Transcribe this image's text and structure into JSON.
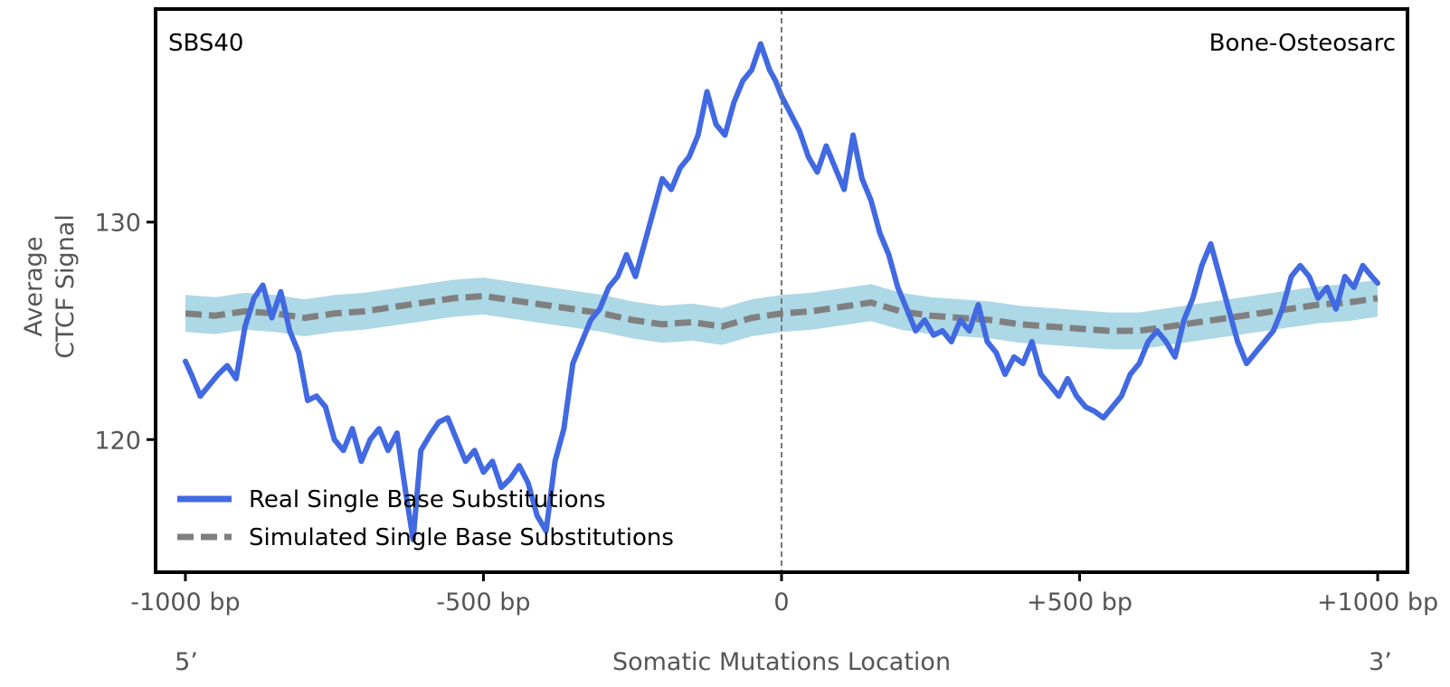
{
  "chart_data": {
    "type": "line",
    "panel_label": "SBS40",
    "cancer_type": "Bone-Osteosarc",
    "ylabel_line1": "Average",
    "ylabel_line2": "CTCF Signal",
    "xlabel": "Somatic Mutations Location",
    "five_prime": "5’",
    "three_prime": "3’",
    "xlim": [
      -1050,
      1050
    ],
    "ylim": [
      113.9,
      139.8
    ],
    "x_ticks": [
      {
        "value": -1000,
        "label": "-1000 bp"
      },
      {
        "value": -500,
        "label": "-500 bp"
      },
      {
        "value": 0,
        "label": "0"
      },
      {
        "value": 500,
        "label": "+500 bp"
      },
      {
        "value": 1000,
        "label": "+1000 bp"
      }
    ],
    "y_ticks": [
      {
        "value": 120,
        "label": "120"
      },
      {
        "value": 130,
        "label": "130"
      }
    ],
    "reference_line_x": 0,
    "legend_position": "lower-left",
    "series": [
      {
        "name": "Real Single Base Substitutions",
        "style": "solid",
        "color": "#4169e1",
        "x": [
          -1000,
          -990,
          -975,
          -960,
          -945,
          -930,
          -915,
          -900,
          -885,
          -870,
          -855,
          -840,
          -825,
          -810,
          -795,
          -780,
          -765,
          -750,
          -735,
          -720,
          -705,
          -690,
          -675,
          -660,
          -645,
          -630,
          -618,
          -605,
          -590,
          -575,
          -560,
          -545,
          -530,
          -515,
          -500,
          -485,
          -470,
          -455,
          -440,
          -425,
          -410,
          -395,
          -380,
          -365,
          -350,
          -335,
          -320,
          -305,
          -290,
          -275,
          -260,
          -245,
          -230,
          -215,
          -200,
          -185,
          -170,
          -155,
          -140,
          -125,
          -110,
          -95,
          -80,
          -65,
          -50,
          -35,
          -20,
          -10,
          0,
          15,
          30,
          45,
          60,
          75,
          90,
          105,
          120,
          135,
          150,
          165,
          180,
          195,
          210,
          225,
          240,
          255,
          270,
          285,
          300,
          315,
          330,
          345,
          360,
          375,
          390,
          405,
          420,
          435,
          450,
          465,
          480,
          495,
          510,
          525,
          540,
          555,
          570,
          585,
          600,
          615,
          630,
          645,
          660,
          675,
          690,
          705,
          720,
          735,
          750,
          765,
          780,
          795,
          810,
          825,
          840,
          855,
          870,
          885,
          900,
          915,
          930,
          945,
          960,
          975,
          990,
          1000
        ],
        "y": [
          123.6,
          123.0,
          122.0,
          122.5,
          123.0,
          123.4,
          122.8,
          125.2,
          126.5,
          127.1,
          125.6,
          126.8,
          125.0,
          124.0,
          121.8,
          122.0,
          121.5,
          120.0,
          119.5,
          120.5,
          119.0,
          120.0,
          120.5,
          119.5,
          120.3,
          117.5,
          115.4,
          119.5,
          120.2,
          120.8,
          121.0,
          120.0,
          119.0,
          119.5,
          118.5,
          119.0,
          117.8,
          118.2,
          118.8,
          118.0,
          116.5,
          115.8,
          119.0,
          120.5,
          123.5,
          124.5,
          125.5,
          126.0,
          127.0,
          127.5,
          128.5,
          127.5,
          129.0,
          130.5,
          132.0,
          131.5,
          132.5,
          133.0,
          134.0,
          136.0,
          134.5,
          134.0,
          135.5,
          136.5,
          137.0,
          138.2,
          137.0,
          136.5,
          135.8,
          135.0,
          134.2,
          133.0,
          132.3,
          133.5,
          132.5,
          131.5,
          134.0,
          132.0,
          131.0,
          129.5,
          128.5,
          127.0,
          126.0,
          125.0,
          125.5,
          124.8,
          125.0,
          124.5,
          125.5,
          125.0,
          126.2,
          124.5,
          124.0,
          123.0,
          123.8,
          123.5,
          124.5,
          123.0,
          122.5,
          122.0,
          122.8,
          122.0,
          121.5,
          121.3,
          121.0,
          121.5,
          122.0,
          123.0,
          123.5,
          124.5,
          125.0,
          124.5,
          123.8,
          125.5,
          126.5,
          128.0,
          129.0,
          127.5,
          126.0,
          124.5,
          123.5,
          124.0,
          124.5,
          125.0,
          126.0,
          127.5,
          128.0,
          127.5,
          126.5,
          127.0,
          126.0,
          127.5,
          127.0,
          128.0,
          127.5,
          127.2
        ]
      },
      {
        "name": "Simulated Single Base Substitutions",
        "style": "dashed",
        "color": "#808080",
        "band_color": "#add8e6",
        "band_halfwidth": 0.85,
        "x": [
          -1000,
          -950,
          -900,
          -850,
          -800,
          -750,
          -700,
          -650,
          -600,
          -550,
          -500,
          -450,
          -400,
          -350,
          -300,
          -250,
          -200,
          -150,
          -100,
          -50,
          0,
          50,
          100,
          150,
          200,
          250,
          300,
          350,
          400,
          450,
          500,
          550,
          600,
          650,
          700,
          750,
          800,
          850,
          900,
          950,
          1000
        ],
        "y": [
          125.8,
          125.7,
          125.9,
          125.8,
          125.6,
          125.8,
          125.9,
          126.1,
          126.3,
          126.5,
          126.6,
          126.4,
          126.2,
          126.0,
          125.8,
          125.5,
          125.3,
          125.4,
          125.2,
          125.6,
          125.8,
          125.9,
          126.1,
          126.3,
          125.9,
          125.7,
          125.6,
          125.5,
          125.3,
          125.2,
          125.1,
          125.0,
          125.0,
          125.2,
          125.4,
          125.6,
          125.8,
          126.0,
          126.2,
          126.3,
          126.5
        ]
      }
    ]
  }
}
